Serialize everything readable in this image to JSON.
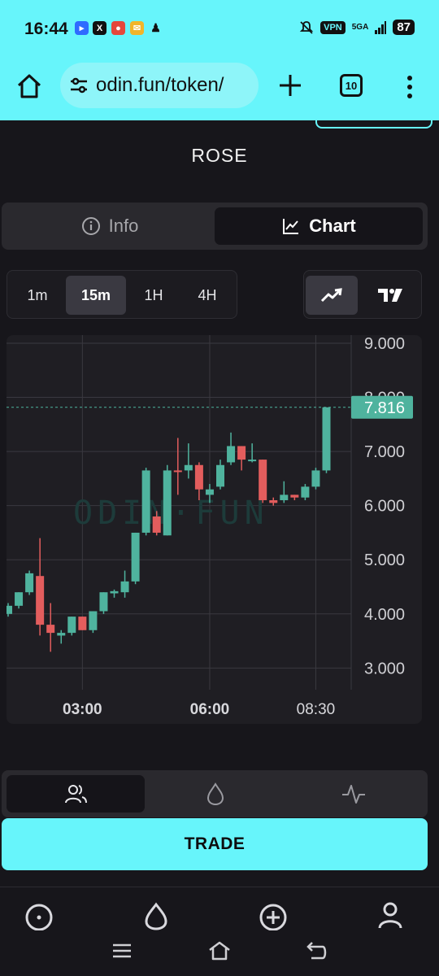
{
  "status_bar": {
    "time": "16:44",
    "vpn": "VPN",
    "network": "5GA",
    "battery": "87",
    "notifications": [
      "bluesky-icon",
      "x-icon",
      "app-icon",
      "mail-icon",
      "qq-icon"
    ]
  },
  "browser": {
    "url": "odin.fun/token/",
    "tab_count": "10"
  },
  "token": {
    "name": "ROSE"
  },
  "view_switch": {
    "info_label": "Info",
    "chart_label": "Chart",
    "active": "chart"
  },
  "intervals": {
    "options": [
      "1m",
      "15m",
      "1H",
      "4H"
    ],
    "selected": "15m"
  },
  "chart_types": {
    "options": [
      "line-icon",
      "tradingview-icon"
    ],
    "selected": "line-icon"
  },
  "chart_data": {
    "type": "candlestick",
    "watermark": "ODIN·FUN",
    "ylim": [
      2.6,
      9.15
    ],
    "y_ticks": [
      "9.000",
      "8.000",
      "7.000",
      "6.000",
      "5.000",
      "4.000",
      "3.000"
    ],
    "y_tick_values": [
      9,
      8,
      7,
      6,
      5,
      4,
      3
    ],
    "x_ticks": [
      {
        "label": "03:00",
        "index": 7
      },
      {
        "label": "06:00",
        "index": 19
      },
      {
        "label": "08:30",
        "index": 29
      }
    ],
    "current_price": "7.816",
    "current_price_value": 7.816,
    "up_color": "#4fb39e",
    "down_color": "#e35d5d",
    "candles": [
      {
        "o": 4.0,
        "h": 4.2,
        "l": 3.95,
        "c": 4.15
      },
      {
        "o": 4.15,
        "h": 4.4,
        "l": 4.1,
        "c": 4.4
      },
      {
        "o": 4.4,
        "h": 4.8,
        "l": 4.35,
        "c": 4.75
      },
      {
        "o": 4.7,
        "h": 5.4,
        "l": 3.6,
        "c": 3.8
      },
      {
        "o": 3.8,
        "h": 4.2,
        "l": 3.3,
        "c": 3.65
      },
      {
        "o": 3.6,
        "h": 3.7,
        "l": 3.45,
        "c": 3.65
      },
      {
        "o": 3.65,
        "h": 3.95,
        "l": 3.6,
        "c": 3.95
      },
      {
        "o": 3.95,
        "h": 3.95,
        "l": 3.7,
        "c": 3.7
      },
      {
        "o": 3.7,
        "h": 4.05,
        "l": 3.65,
        "c": 4.05
      },
      {
        "o": 4.05,
        "h": 4.4,
        "l": 4.0,
        "c": 4.4
      },
      {
        "o": 4.38,
        "h": 4.45,
        "l": 4.3,
        "c": 4.42
      },
      {
        "o": 4.4,
        "h": 4.8,
        "l": 4.3,
        "c": 4.6
      },
      {
        "o": 4.6,
        "h": 5.5,
        "l": 4.55,
        "c": 5.5
      },
      {
        "o": 5.5,
        "h": 6.7,
        "l": 5.45,
        "c": 6.65
      },
      {
        "o": 5.8,
        "h": 5.9,
        "l": 5.45,
        "c": 5.5
      },
      {
        "o": 5.45,
        "h": 6.75,
        "l": 5.45,
        "c": 6.65
      },
      {
        "o": 6.65,
        "h": 7.25,
        "l": 6.2,
        "c": 6.62
      },
      {
        "o": 6.65,
        "h": 7.15,
        "l": 6.5,
        "c": 6.75
      },
      {
        "o": 6.75,
        "h": 6.8,
        "l": 6.1,
        "c": 6.3
      },
      {
        "o": 6.2,
        "h": 6.4,
        "l": 6.05,
        "c": 6.3
      },
      {
        "o": 6.35,
        "h": 6.85,
        "l": 6.3,
        "c": 6.75
      },
      {
        "o": 6.8,
        "h": 7.35,
        "l": 6.75,
        "c": 7.1
      },
      {
        "o": 7.1,
        "h": 7.1,
        "l": 6.65,
        "c": 6.85
      },
      {
        "o": 6.85,
        "h": 7.15,
        "l": 6.8,
        "c": 6.85
      },
      {
        "o": 6.85,
        "h": 6.85,
        "l": 6.05,
        "c": 6.1
      },
      {
        "o": 6.1,
        "h": 6.15,
        "l": 6.0,
        "c": 6.05
      },
      {
        "o": 6.1,
        "h": 6.45,
        "l": 6.05,
        "c": 6.2
      },
      {
        "o": 6.2,
        "h": 6.2,
        "l": 6.1,
        "c": 6.15
      },
      {
        "o": 6.15,
        "h": 6.4,
        "l": 6.1,
        "c": 6.35
      },
      {
        "o": 6.35,
        "h": 6.7,
        "l": 6.3,
        "c": 6.65
      },
      {
        "o": 6.65,
        "h": 7.816,
        "l": 6.6,
        "c": 7.816
      }
    ]
  },
  "bottom_tabs": [
    "users-icon",
    "drop-icon",
    "activity-icon"
  ],
  "trade_button": {
    "label": "TRADE"
  },
  "app_nav": [
    "compass-icon",
    "flame-icon",
    "add-circle-icon",
    "user-icon"
  ],
  "system_nav": [
    "recents-icon",
    "home-icon",
    "back-icon"
  ]
}
